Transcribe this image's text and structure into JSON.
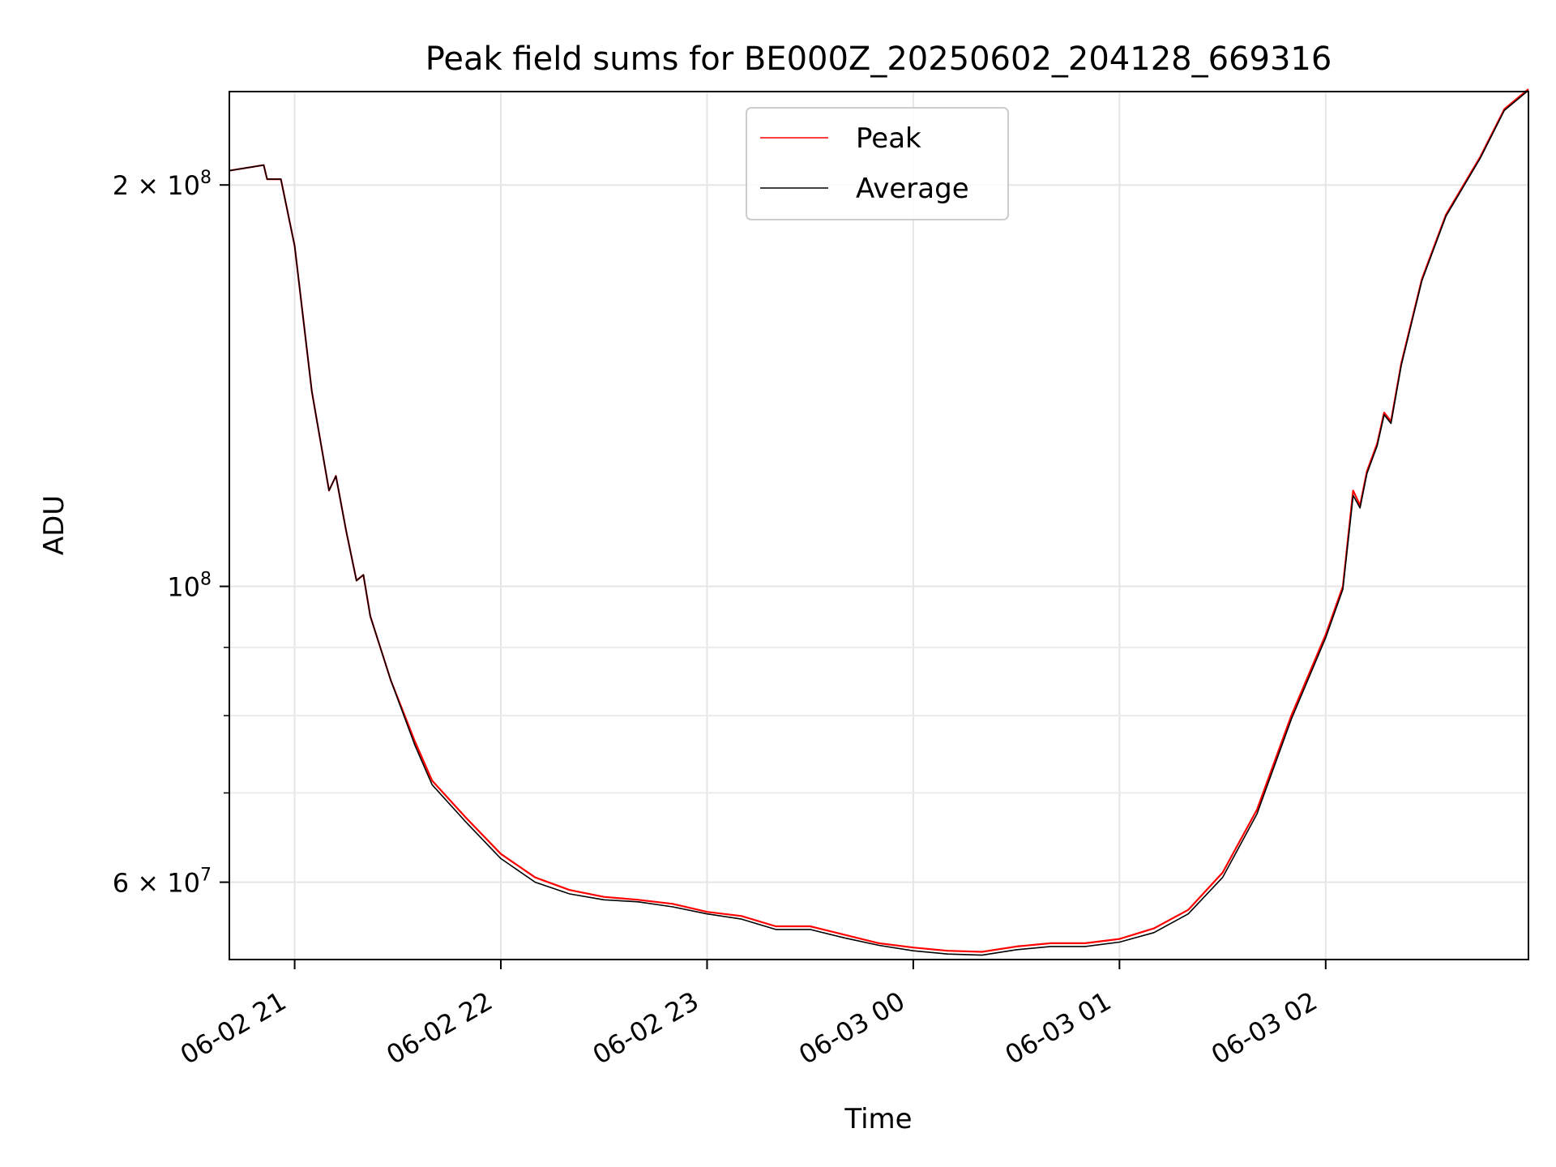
{
  "chart_data": {
    "type": "line",
    "title": "Peak field sums for BE000Z_20250602_204128_669316",
    "xlabel": "Time",
    "ylabel": "ADU",
    "y_scale": "log",
    "ylim": [
      52500000,
      235000000
    ],
    "xlim": [
      "2025-06-02 20:41",
      "2025-06-03 02:59"
    ],
    "grid": true,
    "legend_position": "top-center",
    "x_ticks": [
      {
        "label": "06-02 21",
        "time": "2025-06-02 21:00"
      },
      {
        "label": "06-02 22",
        "time": "2025-06-02 22:00"
      },
      {
        "label": "06-02 23",
        "time": "2025-06-02 23:00"
      },
      {
        "label": "06-03 00",
        "time": "2025-06-03 00:00"
      },
      {
        "label": "06-03 01",
        "time": "2025-06-03 01:00"
      },
      {
        "label": "06-03 02",
        "time": "2025-06-03 02:00"
      }
    ],
    "y_ticks": [
      {
        "value": 60000000,
        "mantissa": "6",
        "base": "10",
        "exponent": "7"
      },
      {
        "value": 100000000,
        "mantissa": "",
        "base": "10",
        "exponent": "8"
      },
      {
        "value": 200000000,
        "mantissa": "2",
        "base": "10",
        "exponent": "8"
      }
    ],
    "y_minor_ticks": [
      70000000,
      80000000,
      90000000
    ],
    "series": [
      {
        "name": "Peak",
        "color": "#ff0000",
        "points": [
          [
            "2025-06-02 20:41",
            205000000
          ],
          [
            "2025-06-02 20:51",
            207000000
          ],
          [
            "2025-06-02 20:52",
            202000000
          ],
          [
            "2025-06-02 20:56",
            202000000
          ],
          [
            "2025-06-02 21:00",
            180000000
          ],
          [
            "2025-06-02 21:05",
            140000000
          ],
          [
            "2025-06-02 21:10",
            118000000
          ],
          [
            "2025-06-02 21:12",
            121000000
          ],
          [
            "2025-06-02 21:15",
            110000000
          ],
          [
            "2025-06-02 21:18",
            101000000
          ],
          [
            "2025-06-02 21:20",
            102000000
          ],
          [
            "2025-06-02 21:22",
            95000000
          ],
          [
            "2025-06-02 21:28",
            85000000
          ],
          [
            "2025-06-02 21:35",
            76500000
          ],
          [
            "2025-06-02 21:40",
            71500000
          ],
          [
            "2025-06-02 21:50",
            67000000
          ],
          [
            "2025-06-02 22:00",
            63000000
          ],
          [
            "2025-06-02 22:10",
            60500000
          ],
          [
            "2025-06-02 22:20",
            59200000
          ],
          [
            "2025-06-02 22:30",
            58500000
          ],
          [
            "2025-06-02 22:40",
            58200000
          ],
          [
            "2025-06-02 22:50",
            57800000
          ],
          [
            "2025-06-02 23:00",
            57000000
          ],
          [
            "2025-06-02 23:10",
            56600000
          ],
          [
            "2025-06-02 23:20",
            55600000
          ],
          [
            "2025-06-02 23:30",
            55600000
          ],
          [
            "2025-06-02 23:40",
            54800000
          ],
          [
            "2025-06-02 23:50",
            54000000
          ],
          [
            "2025-06-03 00:00",
            53600000
          ],
          [
            "2025-06-03 00:10",
            53300000
          ],
          [
            "2025-06-03 00:20",
            53200000
          ],
          [
            "2025-06-03 00:30",
            53700000
          ],
          [
            "2025-06-03 00:40",
            54000000
          ],
          [
            "2025-06-03 00:50",
            54000000
          ],
          [
            "2025-06-03 01:00",
            54400000
          ],
          [
            "2025-06-03 01:10",
            55400000
          ],
          [
            "2025-06-03 01:20",
            57200000
          ],
          [
            "2025-06-03 01:30",
            61000000
          ],
          [
            "2025-06-03 01:40",
            68000000
          ],
          [
            "2025-06-03 01:50",
            80000000
          ],
          [
            "2025-06-03 02:00",
            92000000
          ],
          [
            "2025-06-03 02:05",
            100000000
          ],
          [
            "2025-06-03 02:08",
            118000000
          ],
          [
            "2025-06-03 02:10",
            115000000
          ],
          [
            "2025-06-03 02:12",
            122000000
          ],
          [
            "2025-06-03 02:15",
            128000000
          ],
          [
            "2025-06-03 02:17",
            135000000
          ],
          [
            "2025-06-03 02:19",
            133000000
          ],
          [
            "2025-06-03 02:22",
            147000000
          ],
          [
            "2025-06-03 02:28",
            170000000
          ],
          [
            "2025-06-03 02:35",
            190000000
          ],
          [
            "2025-06-03 02:45",
            210000000
          ],
          [
            "2025-06-03 02:52",
            228000000
          ],
          [
            "2025-06-03 02:59",
            236000000
          ]
        ]
      },
      {
        "name": "Average",
        "color": "#000000",
        "points": [
          [
            "2025-06-02 20:41",
            205000000
          ],
          [
            "2025-06-02 20:51",
            207000000
          ],
          [
            "2025-06-02 20:52",
            202000000
          ],
          [
            "2025-06-02 20:56",
            202000000
          ],
          [
            "2025-06-02 21:00",
            180000000
          ],
          [
            "2025-06-02 21:05",
            140000000
          ],
          [
            "2025-06-02 21:10",
            118000000
          ],
          [
            "2025-06-02 21:12",
            121000000
          ],
          [
            "2025-06-02 21:15",
            110000000
          ],
          [
            "2025-06-02 21:18",
            101000000
          ],
          [
            "2025-06-02 21:20",
            102000000
          ],
          [
            "2025-06-02 21:22",
            95000000
          ],
          [
            "2025-06-02 21:28",
            85000000
          ],
          [
            "2025-06-02 21:35",
            76000000
          ],
          [
            "2025-06-02 21:40",
            71000000
          ],
          [
            "2025-06-02 21:50",
            66500000
          ],
          [
            "2025-06-02 22:00",
            62500000
          ],
          [
            "2025-06-02 22:10",
            60000000
          ],
          [
            "2025-06-02 22:20",
            58800000
          ],
          [
            "2025-06-02 22:30",
            58200000
          ],
          [
            "2025-06-02 22:40",
            58000000
          ],
          [
            "2025-06-02 22:50",
            57500000
          ],
          [
            "2025-06-02 23:00",
            56800000
          ],
          [
            "2025-06-02 23:10",
            56300000
          ],
          [
            "2025-06-02 23:20",
            55300000
          ],
          [
            "2025-06-02 23:30",
            55300000
          ],
          [
            "2025-06-02 23:40",
            54500000
          ],
          [
            "2025-06-02 23:50",
            53800000
          ],
          [
            "2025-06-03 00:00",
            53300000
          ],
          [
            "2025-06-03 00:10",
            53000000
          ],
          [
            "2025-06-03 00:20",
            52900000
          ],
          [
            "2025-06-03 00:30",
            53400000
          ],
          [
            "2025-06-03 00:40",
            53700000
          ],
          [
            "2025-06-03 00:50",
            53700000
          ],
          [
            "2025-06-03 01:00",
            54100000
          ],
          [
            "2025-06-03 01:10",
            55000000
          ],
          [
            "2025-06-03 01:20",
            56800000
          ],
          [
            "2025-06-03 01:30",
            60500000
          ],
          [
            "2025-06-03 01:40",
            67500000
          ],
          [
            "2025-06-03 01:50",
            79500000
          ],
          [
            "2025-06-03 02:00",
            91500000
          ],
          [
            "2025-06-03 02:05",
            99500000
          ],
          [
            "2025-06-03 02:08",
            117000000
          ],
          [
            "2025-06-03 02:10",
            114500000
          ],
          [
            "2025-06-03 02:12",
            121500000
          ],
          [
            "2025-06-03 02:15",
            127500000
          ],
          [
            "2025-06-03 02:17",
            134500000
          ],
          [
            "2025-06-03 02:19",
            132500000
          ],
          [
            "2025-06-03 02:22",
            146500000
          ],
          [
            "2025-06-03 02:28",
            169500000
          ],
          [
            "2025-06-03 02:35",
            189500000
          ],
          [
            "2025-06-03 02:45",
            209500000
          ],
          [
            "2025-06-03 02:52",
            227500000
          ],
          [
            "2025-06-03 02:59",
            235500000
          ]
        ]
      }
    ]
  }
}
